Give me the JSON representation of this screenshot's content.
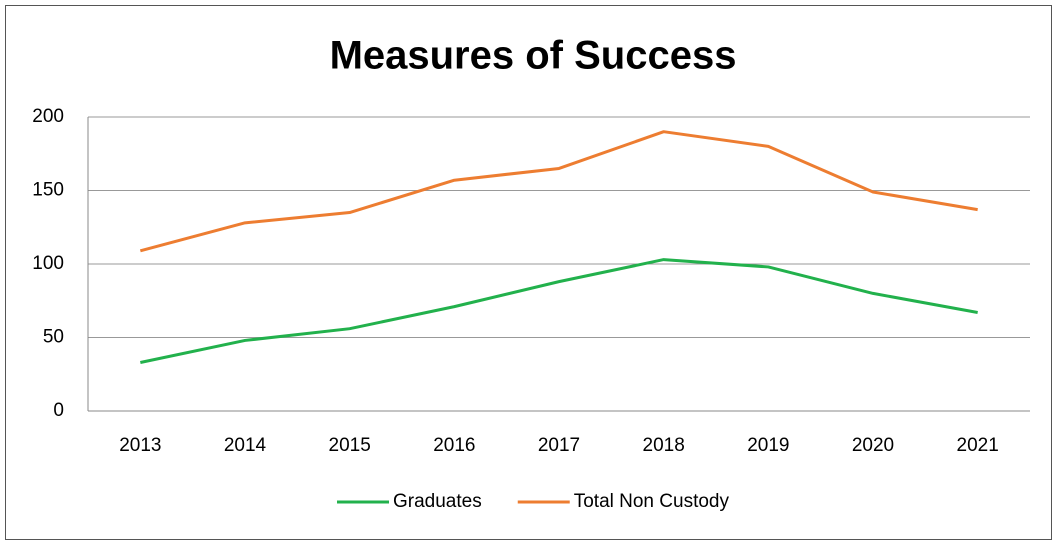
{
  "chart_data": {
    "type": "line",
    "title": "Measures of Success",
    "categories": [
      "2013",
      "2014",
      "2015",
      "2016",
      "2017",
      "2018",
      "2019",
      "2020",
      "2021"
    ],
    "series": [
      {
        "name": "Graduates",
        "color": "#22b14c",
        "values": [
          33,
          48,
          56,
          71,
          88,
          103,
          98,
          80,
          67
        ]
      },
      {
        "name": "Total Non Custody",
        "color": "#ed7d31",
        "values": [
          109,
          128,
          135,
          157,
          165,
          190,
          180,
          149,
          137
        ]
      }
    ],
    "ylim": [
      0,
      200
    ],
    "yticks": [
      0,
      50,
      100,
      150,
      200
    ],
    "grid": true,
    "legend": "bottom"
  }
}
